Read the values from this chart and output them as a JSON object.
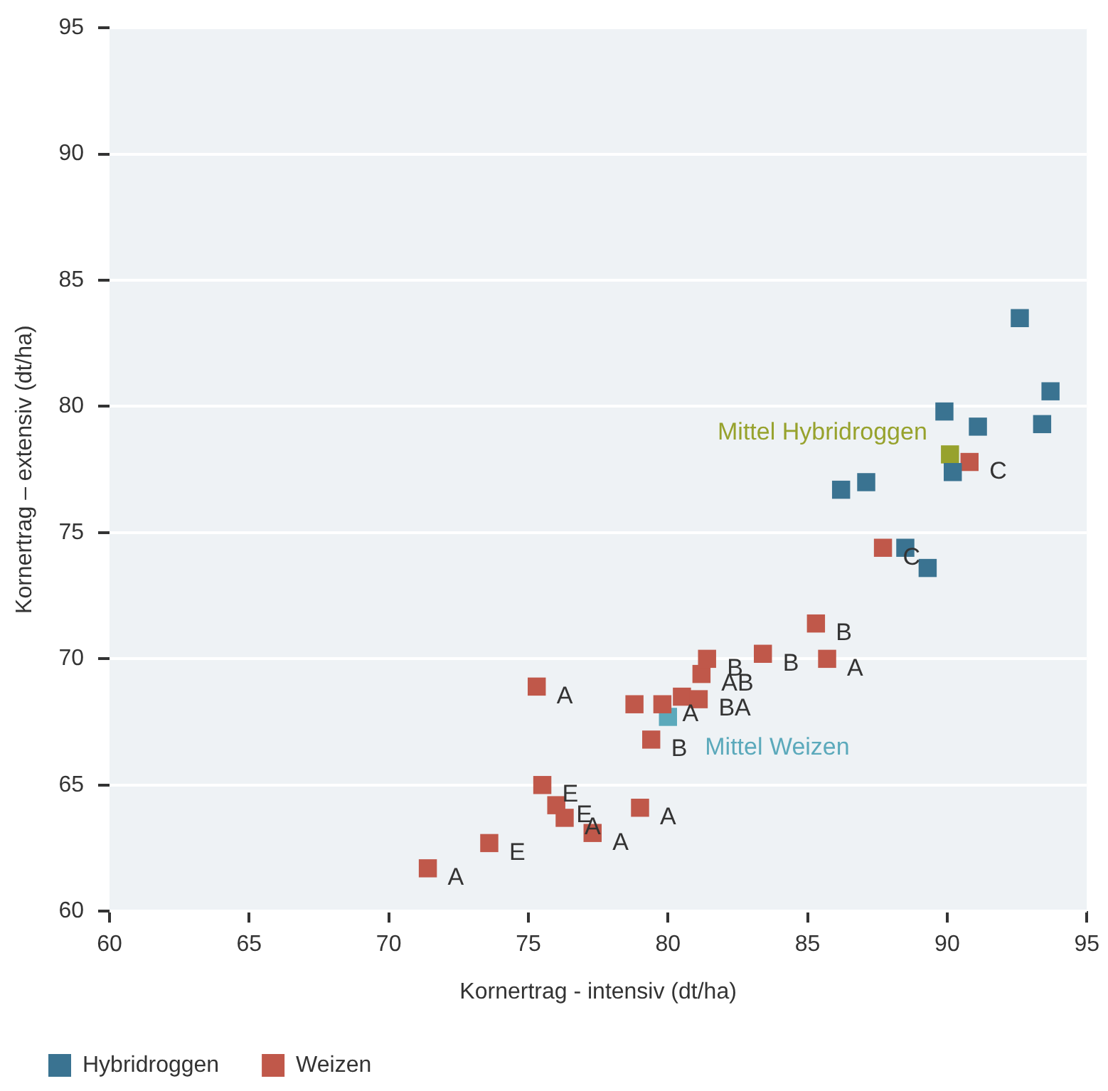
{
  "chart_data": {
    "type": "scatter",
    "xlabel": "Kornertrag - intensiv (dt/ha)",
    "ylabel": "Kornertrag – extensiv (dt/ha)",
    "xlim": [
      60,
      95
    ],
    "xticks": [
      60,
      65,
      70,
      75,
      80,
      85,
      90,
      95
    ],
    "ylim": [
      60,
      95
    ],
    "yticks": [
      60,
      65,
      70,
      75,
      80,
      85,
      90,
      95
    ],
    "grid": "y",
    "legend": "bottom left",
    "marker": "square",
    "series": [
      {
        "name": "Hybridroggen",
        "color": "#3a7391",
        "x": [
          92.6,
          93.7,
          93.4,
          91.1,
          89.9,
          90.2,
          87.1,
          86.2,
          88.5,
          89.3
        ],
        "values": [
          83.5,
          80.6,
          79.3,
          79.2,
          79.8,
          77.4,
          77.0,
          76.7,
          74.4,
          73.6
        ]
      },
      {
        "name": "Weizen",
        "color": "#c0584a",
        "x": [
          71.4,
          73.6,
          77.3,
          76.3,
          76.0,
          75.5,
          79.0,
          75.3,
          78.8,
          79.8,
          80.5,
          81.1,
          81.2,
          81.4,
          83.4,
          85.3,
          85.7,
          79.4,
          87.7,
          90.8
        ],
        "values": [
          61.7,
          62.7,
          63.1,
          63.7,
          64.2,
          65.0,
          64.1,
          68.9,
          68.2,
          68.2,
          68.5,
          68.4,
          69.4,
          70.0,
          70.2,
          71.4,
          70.0,
          66.8,
          74.4,
          77.8
        ],
        "value_labels": [
          "A",
          "E",
          "A",
          "A",
          "E",
          "E",
          "A",
          "A",
          null,
          "A",
          null,
          "BA",
          "AB",
          "B",
          "B",
          "B",
          "A",
          "B",
          "C",
          "C"
        ]
      },
      {
        "name": "Mittel Hybridroggen",
        "color": "#97a22d",
        "x": [
          90.1
        ],
        "values": [
          78.1
        ]
      },
      {
        "name": "Mittel Weizen",
        "color": "#5ba9bb",
        "x": [
          80.0
        ],
        "values": [
          67.7
        ]
      }
    ]
  }
}
